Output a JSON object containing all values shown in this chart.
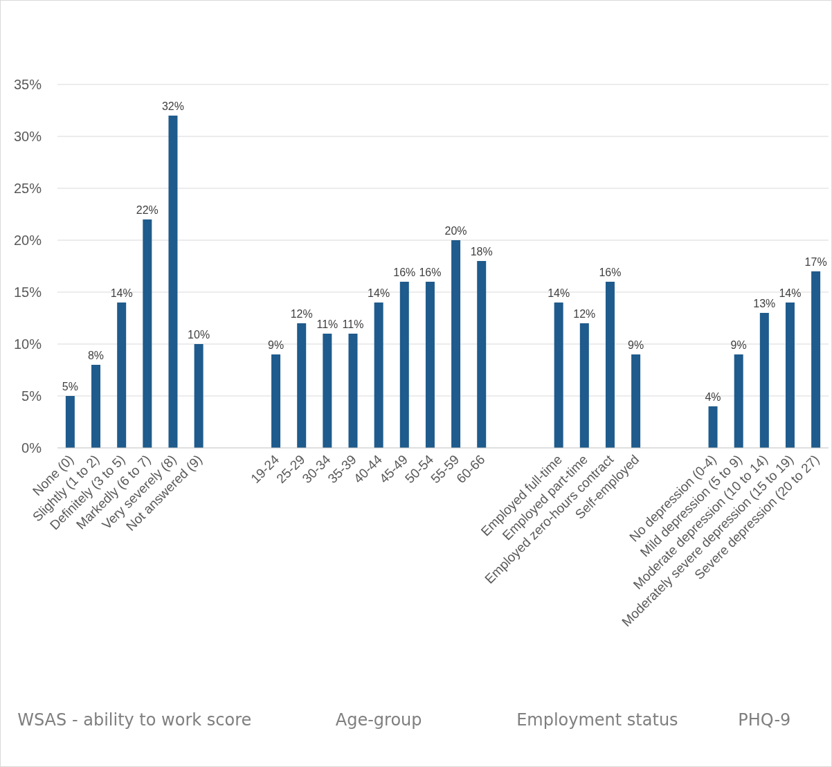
{
  "chart_data": {
    "type": "bar",
    "categories": [
      "None (0)",
      "Slightly (1 to 2)",
      "Definitely (3 to 5)",
      "Markedly (6 to 7)",
      "Very severely (8)",
      "Not answered (9)",
      null,
      null,
      "19-24",
      "25-29",
      "30-34",
      "35-39",
      "40-44",
      "45-49",
      "50-54",
      "55-59",
      "60-66",
      null,
      null,
      "Employed full-time",
      "Employed part-time",
      "Employed zero-hours contract",
      "Self-employed",
      null,
      null,
      "No depression (0-4)",
      "Mild depression (5 to 9)",
      "Moderate depression (10 to 14)",
      "Moderately severe depression (15 to 19)",
      "Severe depression (20 to 27)"
    ],
    "values": [
      5,
      8,
      14,
      22,
      32,
      10,
      null,
      null,
      9,
      12,
      11,
      11,
      14,
      16,
      16,
      20,
      18,
      null,
      null,
      14,
      12,
      16,
      9,
      null,
      null,
      4,
      9,
      13,
      14,
      17
    ],
    "value_labels": [
      "5%",
      "8%",
      "14%",
      "22%",
      "32%",
      "10%",
      null,
      null,
      "9%",
      "12%",
      "11%",
      "11%",
      "14%",
      "16%",
      "16%",
      "20%",
      "18%",
      null,
      null,
      "14%",
      "12%",
      "16%",
      "9%",
      null,
      null,
      "4%",
      "9%",
      "13%",
      "14%",
      "17%"
    ],
    "color": "#1f5b8c",
    "ylim": [
      0,
      35
    ],
    "yticks": [
      {
        "value": 0,
        "label": "0%"
      },
      {
        "value": 5,
        "label": "5%"
      },
      {
        "value": 10,
        "label": "10%"
      },
      {
        "value": 15,
        "label": "15%"
      },
      {
        "value": 20,
        "label": "20%"
      },
      {
        "value": 25,
        "label": "25%"
      },
      {
        "value": 30,
        "label": "30%"
      },
      {
        "value": 35,
        "label": "35%"
      }
    ],
    "grid": "y",
    "annotations": [
      "WSAS - ability to work score",
      "Age-group",
      "Employment status",
      "PHQ-9"
    ]
  }
}
